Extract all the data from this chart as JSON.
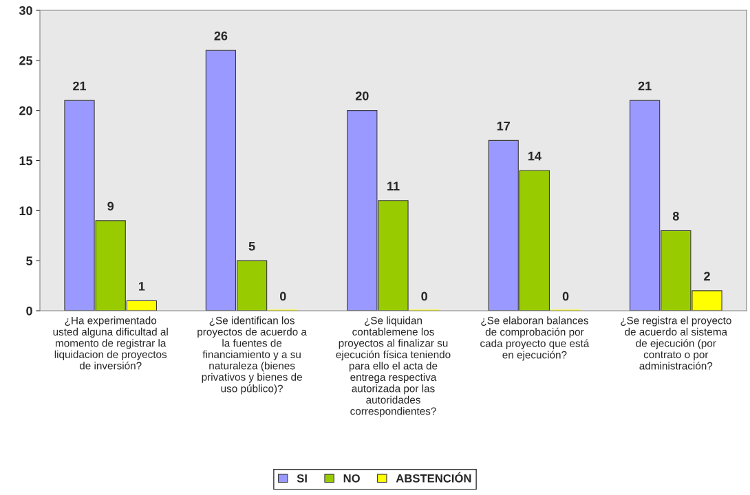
{
  "chart_data": {
    "type": "bar",
    "categories": [
      "¿Ha experimentado\nusted alguna dificultad al\nmomento de registrar la\nliquidacion de proyectos\nde inversión?",
      "¿Se identifican los\nproyectos de acuerdo a\nla fuentes de\nfinanciamiento y a su\nnaturaleza (bienes\nprivativos y bienes de\nuso público)?",
      "¿Se liquidan\ncontablemene los\nproyectos al finalizar su\nejecución física teniendo\npara ello el acta de\nentrega respectiva\nautorizada por las\nautoridades\ncorrespondientes?",
      "¿Se elaboran balances\nde comprobación por\ncada proyecto que está\nen ejecución?",
      "¿Se registra el proyecto\nde acuerdo al sistema\nde ejecución (por\ncontrato o por\nadministración?"
    ],
    "series": [
      {
        "name": "SI",
        "color": "#9999ff",
        "values": [
          21,
          26,
          20,
          17,
          21
        ]
      },
      {
        "name": "NO",
        "color": "#99cc00",
        "values": [
          9,
          5,
          11,
          14,
          8
        ]
      },
      {
        "name": "ABSTENCIÓN",
        "color": "#ffff00",
        "values": [
          1,
          0,
          0,
          0,
          2
        ]
      }
    ],
    "ylim": [
      0,
      30
    ],
    "yticks": [
      0,
      5,
      10,
      15,
      20,
      25,
      30
    ],
    "data_labels": true,
    "legend": "bottom",
    "grid": false
  }
}
